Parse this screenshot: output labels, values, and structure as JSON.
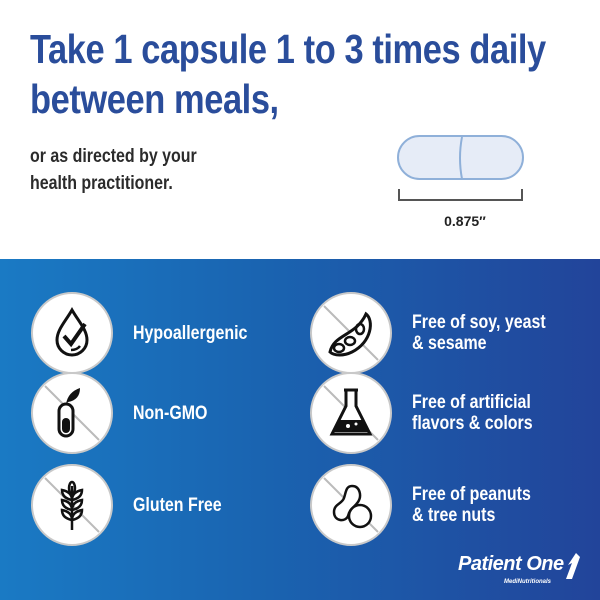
{
  "header": {
    "title_lines": [
      "Take 1 capsule 1 to 3 times daily",
      "between meals,"
    ],
    "subtitle_lines": [
      "or as directed by your",
      "health practitioner."
    ]
  },
  "capsule": {
    "size_label": "0.875″",
    "fill": "#e6ecf7",
    "stroke": "#8fb0d9"
  },
  "features": [
    {
      "label_lines": [
        "Hypoallergenic"
      ],
      "icon": "drop-check-icon",
      "crossed": false
    },
    {
      "label_lines": [
        "Non-GMO"
      ],
      "icon": "test-tube-leaf-icon",
      "crossed": true
    },
    {
      "label_lines": [
        "Gluten Free"
      ],
      "icon": "wheat-icon",
      "crossed": true
    },
    {
      "label_lines": [
        "Free of soy, yeast",
        "& sesame"
      ],
      "icon": "soybean-icon",
      "crossed": true
    },
    {
      "label_lines": [
        "Free of artificial",
        "flavors & colors"
      ],
      "icon": "flask-icon",
      "crossed": true
    },
    {
      "label_lines": [
        "Free of peanuts",
        "& tree nuts"
      ],
      "icon": "nuts-icon",
      "crossed": true
    }
  ],
  "brand": {
    "name": "Patient One",
    "tagline": "MediNutritionals"
  },
  "colors": {
    "title": "#2a4d9b",
    "panel_start": "#1a7ac4",
    "panel_end": "#22449a"
  }
}
